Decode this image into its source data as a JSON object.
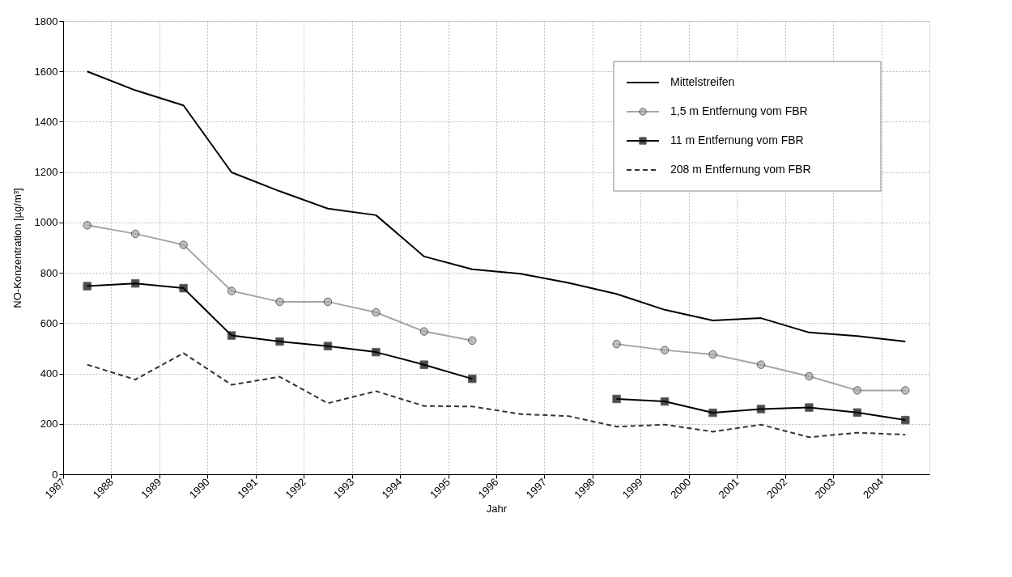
{
  "chart_data": {
    "type": "line",
    "xlabel": "Jahr",
    "ylabel": "NO-Konzentration [µg/m³]",
    "x": [
      1987.5,
      1988.5,
      1989.5,
      1990.5,
      1991.5,
      1992.5,
      1993.5,
      1994.5,
      1995.5,
      1996.5,
      1997.5,
      1998.5,
      1999.5,
      2000.5,
      2001.5,
      2002.5,
      2003.5,
      2004.5
    ],
    "xlim": [
      1987,
      2005
    ],
    "xticks": [
      1987,
      1988,
      1989,
      1990,
      1991,
      1992,
      1993,
      1994,
      1995,
      1996,
      1997,
      1998,
      1999,
      2000,
      2001,
      2002,
      2003,
      2004
    ],
    "ylim": [
      0,
      1800
    ],
    "yticks": [
      0,
      200,
      400,
      600,
      800,
      1000,
      1200,
      1400,
      1600,
      1800
    ],
    "grid": true,
    "legend": "top right",
    "series": [
      {
        "name": "Mittelstreifen",
        "color": "#000000",
        "marker": "none",
        "line_style": "solid",
        "values": [
          1600,
          1525,
          1465,
          1199,
          1124,
          1055,
          1029,
          865,
          814,
          796,
          760,
          716,
          653,
          611,
          620,
          563,
          549,
          527
        ]
      },
      {
        "name": "1,5 m Entfernung vom FBR",
        "color": "#a6a6a6",
        "marker": "circle",
        "line_style": "solid",
        "values": [
          989,
          955,
          911,
          728,
          685,
          685,
          643,
          567,
          531,
          null,
          null,
          517,
          493,
          476,
          435,
          389,
          333,
          333
        ]
      },
      {
        "name": "11 m Entfernung vom FBR",
        "color": "#000000",
        "marker": "square",
        "line_style": "solid",
        "values": [
          747,
          758,
          739,
          551,
          527,
          509,
          485,
          435,
          379,
          null,
          null,
          299,
          289,
          244,
          259,
          265,
          245,
          215
        ]
      },
      {
        "name": "208 m Entfernung vom FBR",
        "color": "#333333",
        "marker": "none",
        "line_style": "dashed",
        "values": [
          435,
          376,
          481,
          355,
          387,
          282,
          330,
          271,
          269,
          239,
          231,
          189,
          197,
          169,
          197,
          147,
          165,
          157
        ]
      }
    ]
  }
}
